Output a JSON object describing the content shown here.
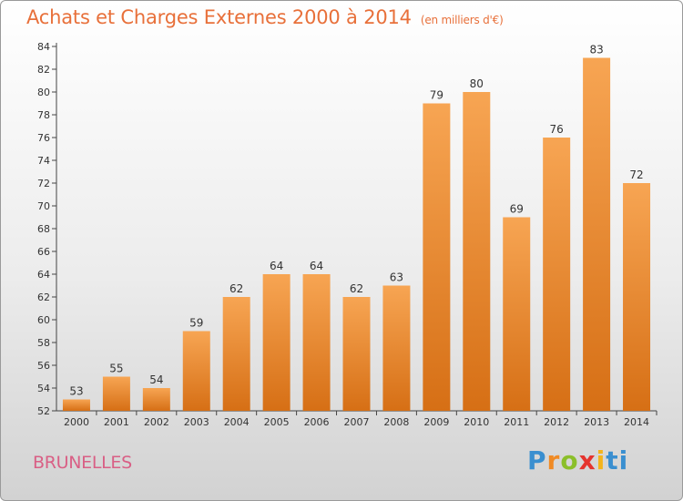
{
  "title": "Achats et Charges Externes 2000 à 2014",
  "subtitle": "(en milliers d'€)",
  "city": "BRUNELLES",
  "logo": {
    "text": "Proxiti",
    "letters": [
      "P",
      "r",
      "o",
      "x",
      "i",
      "ti"
    ]
  },
  "colors": {
    "title": "#e8703a",
    "bar_top": "#f7a553",
    "bar_bottom": "#d66f15",
    "city": "#d95f85"
  },
  "chart_data": {
    "type": "bar",
    "categories": [
      "2000",
      "2001",
      "2002",
      "2003",
      "2004",
      "2005",
      "2006",
      "2007",
      "2008",
      "2009",
      "2010",
      "2011",
      "2012",
      "2013",
      "2014"
    ],
    "values": [
      53,
      55,
      54,
      59,
      62,
      64,
      64,
      62,
      63,
      79,
      80,
      69,
      76,
      83,
      72
    ],
    "ylim": [
      52,
      84
    ],
    "yticks": [
      52,
      54,
      56,
      58,
      60,
      62,
      64,
      66,
      68,
      70,
      72,
      74,
      76,
      78,
      80,
      82,
      84
    ],
    "grid": false,
    "data_labels": true
  }
}
